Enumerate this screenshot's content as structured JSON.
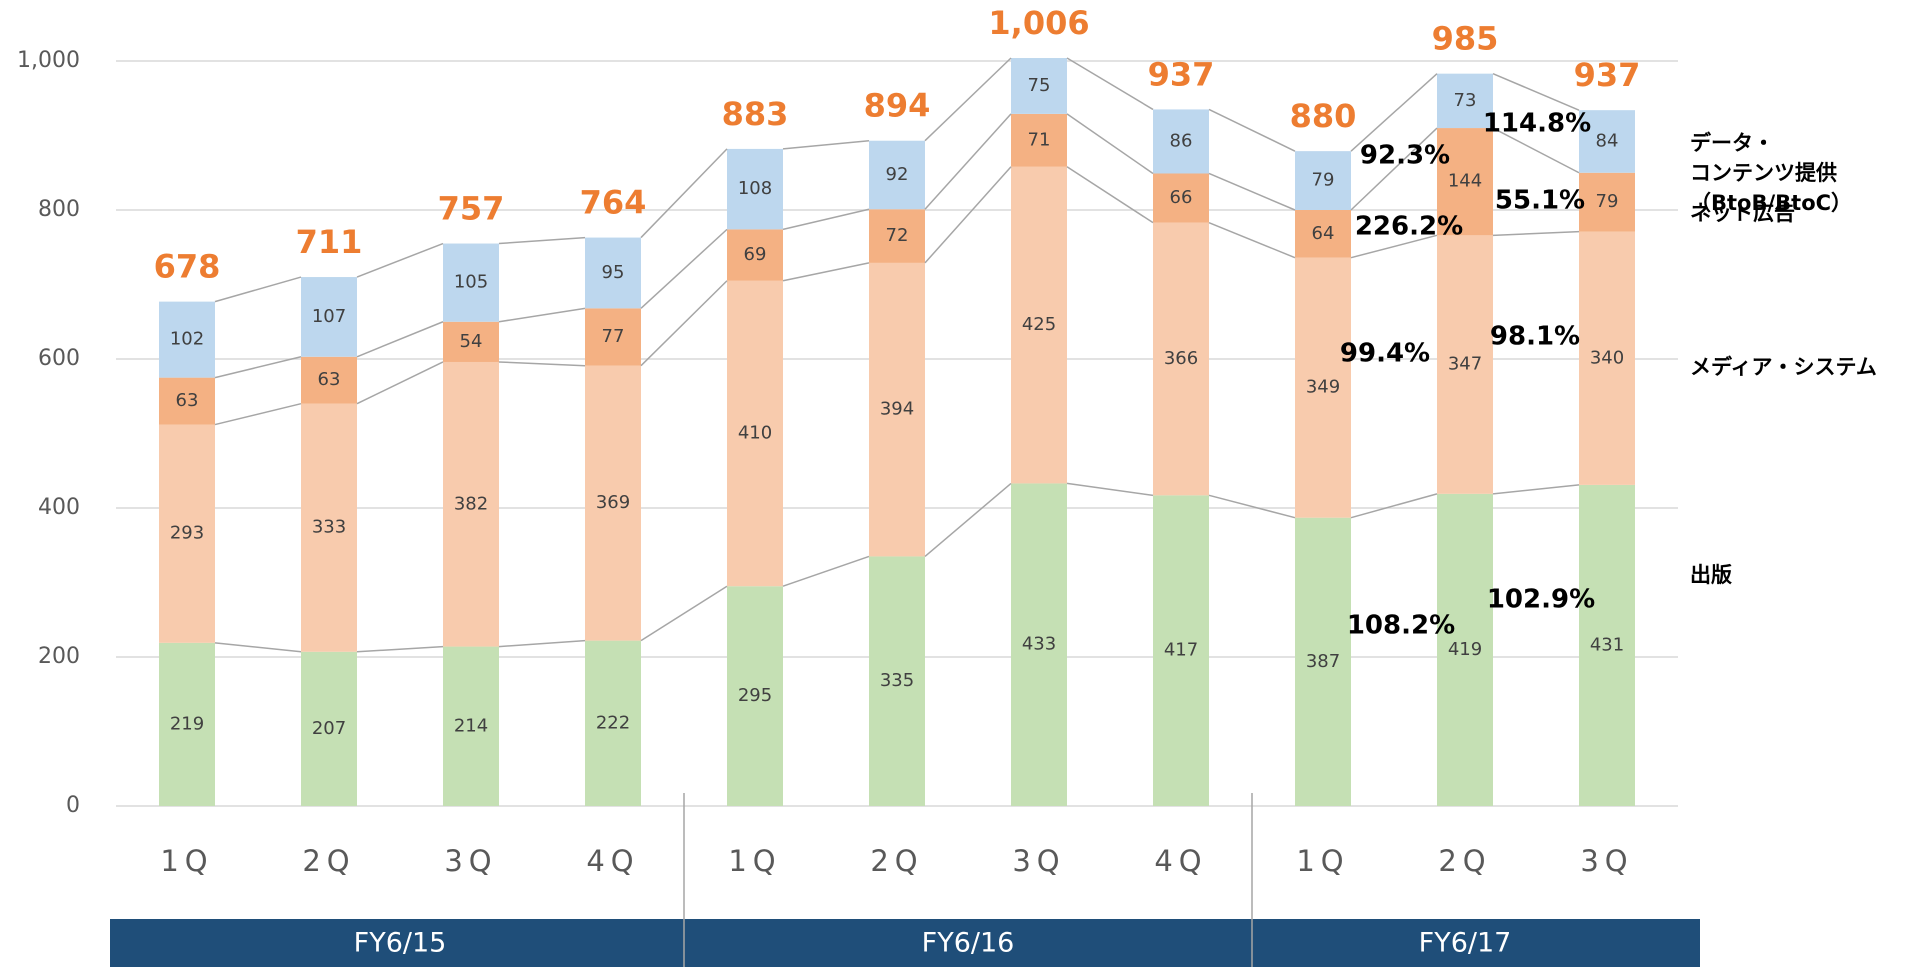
{
  "chart_data": {
    "type": "stacked_bar",
    "categories": [
      "1Q",
      "2Q",
      "3Q",
      "4Q",
      "1Q",
      "2Q",
      "3Q",
      "4Q",
      "1Q",
      "2Q",
      "3Q"
    ],
    "groups": [
      "FY6/15",
      "FY6/16",
      "FY6/17"
    ],
    "series": [
      {
        "name": "データ・\nコンテンツ提供\n（BtoB/BtoC）",
        "color": "#c5e0b4",
        "values": [
          219,
          207,
          214,
          222,
          295,
          335,
          433,
          417,
          387,
          419,
          431
        ]
      },
      {
        "name": "ネット広告",
        "color": "#f8cbad",
        "values": [
          293,
          333,
          382,
          369,
          410,
          394,
          425,
          366,
          349,
          347,
          340
        ]
      },
      {
        "name": "メディア・システム",
        "color": "#f4b183",
        "values": [
          63,
          63,
          54,
          77,
          69,
          72,
          71,
          66,
          64,
          144,
          79
        ]
      },
      {
        "name": "出版",
        "color": "#bdd7ee",
        "values": [
          102,
          107,
          105,
          95,
          108,
          92,
          75,
          86,
          79,
          73,
          84
        ]
      }
    ],
    "totals": [
      678,
      711,
      757,
      764,
      883,
      894,
      1006,
      937,
      880,
      985,
      937
    ],
    "total_labels": [
      "678",
      "711",
      "757",
      "764",
      "883",
      "894",
      "1,006",
      "937",
      "880",
      "985",
      "937"
    ],
    "total_color": "#ed7d31",
    "annotations": [
      "92.3%",
      "114.8%",
      "226.2%",
      "55.1%",
      "99.4%",
      "98.1%",
      "108.2%",
      "102.9%"
    ],
    "ylim": [
      0,
      1000
    ],
    "yticks": [
      0,
      200,
      400,
      600,
      800,
      {
        "value": 1000,
        "label": "1,000"
      }
    ],
    "grid": true
  }
}
